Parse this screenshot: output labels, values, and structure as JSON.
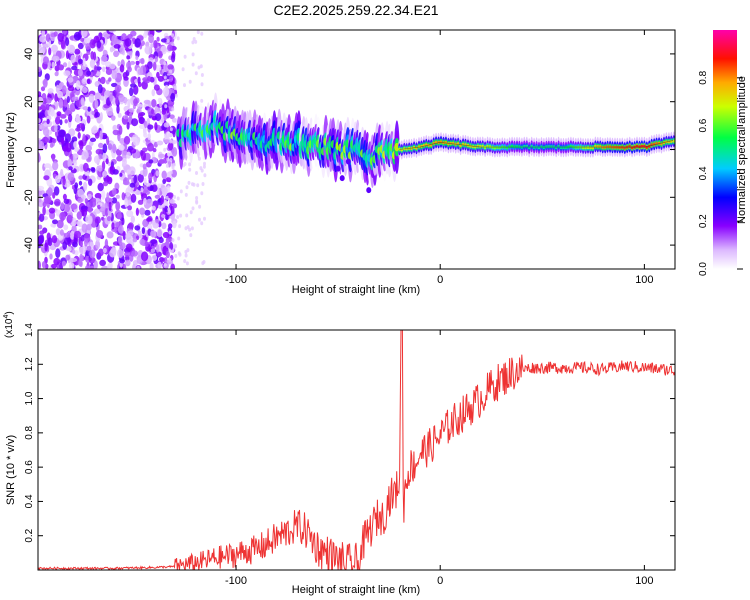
{
  "title": "C2E2.2025.259.22.34.E21",
  "chart_data": [
    {
      "type": "heatmap",
      "xlabel": "Height of straight line (km)",
      "ylabel": "Frequency (Hz)",
      "xlim": [
        -197,
        115
      ],
      "ylim": [
        -50,
        50
      ],
      "x_ticks": [
        -100,
        0,
        100
      ],
      "y_ticks": [
        -40,
        -20,
        0,
        20,
        40
      ],
      "colorbar": {
        "label": "Normalized spectral amplitude",
        "range": [
          0,
          1
        ],
        "ticks": [
          "0.0",
          "0.2",
          "0.4",
          "0.6",
          "0.8"
        ],
        "colors": [
          "#ffffff",
          "#8800ff",
          "#0000ff",
          "#00ffff",
          "#00ff00",
          "#ffff00",
          "#ff8800",
          "#ff0000",
          "#ff00aa"
        ]
      },
      "regions": [
        {
          "x_range": [
            -197,
            -130
          ],
          "description_values": {
            "freq_range": [
              -50,
              50
            ],
            "amplitude_range": [
              0.05,
              0.25
            ]
          }
        },
        {
          "x_range": [
            -130,
            -20
          ],
          "description_values": {
            "freq_center": [
              5,
              0
            ],
            "freq_spread": 8,
            "amplitude_range": [
              0.2,
              0.9
            ]
          }
        },
        {
          "x_range": [
            -20,
            115
          ],
          "description_values": {
            "freq_center": 2,
            "freq_spread": 2,
            "amplitude_range": [
              0.4,
              0.95
            ]
          }
        }
      ],
      "ridge": {
        "x": [
          -128,
          -110,
          -100,
          -90,
          -80,
          -70,
          -60,
          -50,
          -40,
          -30,
          -20,
          -10,
          0,
          20,
          40,
          60,
          80,
          100,
          115
        ],
        "freq": [
          5,
          10,
          6,
          4,
          3,
          3,
          1,
          0,
          -1,
          -3,
          0,
          1,
          3,
          1,
          1,
          1,
          1,
          1,
          4
        ],
        "amplitude": [
          0.45,
          0.5,
          0.55,
          0.5,
          0.5,
          0.55,
          0.6,
          0.6,
          0.55,
          0.55,
          0.7,
          0.75,
          0.8,
          0.7,
          0.5,
          0.5,
          0.8,
          0.9,
          0.7
        ]
      }
    },
    {
      "type": "line",
      "xlabel": "Height of straight line (km)",
      "ylabel": "SNR (10 * v/v)",
      "y_multiplier": "(x10^4)",
      "xlim": [
        -197,
        115
      ],
      "ylim": [
        0,
        1.4
      ],
      "x_ticks": [
        -100,
        0,
        100
      ],
      "y_ticks": [
        0.2,
        0.4,
        0.6,
        0.8,
        1.0,
        1.2,
        1.4
      ],
      "color": "#ee3333",
      "series": [
        {
          "x": [
            -197,
            -180,
            -160,
            -140,
            -130,
            -120,
            -110,
            -100,
            -95,
            -90,
            -85,
            -80,
            -75,
            -70,
            -65,
            -60,
            -55,
            -50,
            -45,
            -40,
            -38,
            -35,
            -32,
            -30,
            -28,
            -25,
            -22,
            -20,
            -19,
            -18,
            -17,
            -15,
            -12,
            -10,
            -5,
            0,
            5,
            10,
            15,
            20,
            25,
            30,
            35,
            40,
            45,
            50,
            60,
            70,
            80,
            90,
            100,
            110,
            115
          ],
          "values": [
            0.01,
            0.01,
            0.01,
            0.015,
            0.02,
            0.04,
            0.07,
            0.09,
            0.11,
            0.12,
            0.15,
            0.19,
            0.22,
            0.26,
            0.22,
            0.13,
            0.09,
            0.05,
            0.03,
            0.03,
            0.15,
            0.22,
            0.28,
            0.32,
            0.3,
            0.42,
            0.45,
            0.52,
            1.4,
            0.35,
            0.5,
            0.6,
            0.62,
            0.68,
            0.72,
            0.78,
            0.85,
            0.9,
            0.95,
            1.0,
            1.07,
            1.11,
            1.15,
            1.17,
            1.18,
            1.18,
            1.18,
            1.18,
            1.17,
            1.19,
            1.18,
            1.17,
            1.16
          ]
        }
      ]
    }
  ]
}
